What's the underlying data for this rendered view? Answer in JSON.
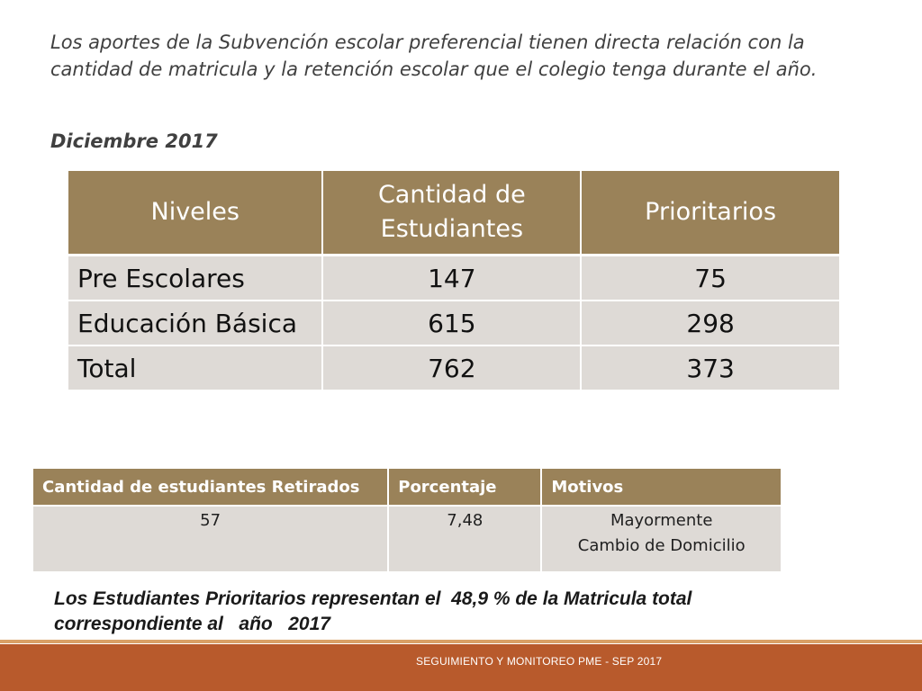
{
  "intro_text": "Los aportes de la Subvención escolar preferencial tienen directa relación con la cantidad de matricula y la retención escolar que el colegio tenga durante el año.",
  "date_label": "Diciembre 2017",
  "main_table": {
    "headers": [
      "Niveles",
      "Cantidad de Estudiantes",
      "Prioritarios"
    ],
    "rows": [
      [
        "Pre Escolares",
        "147",
        "75"
      ],
      [
        "Educación Básica",
        "615",
        "298"
      ],
      [
        "Total",
        "762",
        "373"
      ]
    ]
  },
  "retired_table": {
    "headers": [
      "Cantidad de estudiantes Retirados",
      "Porcentaje",
      "Motivos"
    ],
    "row": {
      "count": "57",
      "percent": "7,48",
      "reason_line1": "Mayormente",
      "reason_line2": "Cambio de Domicilio"
    }
  },
  "note": {
    "line1": "Los Estudiantes Prioritarios representan el  48,9 % de la Matricula total",
    "line2": "correspondiente al   año   2017"
  },
  "footer_text": "SEGUIMIENTO Y MONITOREO PME - SEP 2017",
  "colors": {
    "header_bg": "#9a8259",
    "cell_bg": "#dedad6",
    "footer_bg": "#b85a2c",
    "footer_line": "#d9a066"
  }
}
